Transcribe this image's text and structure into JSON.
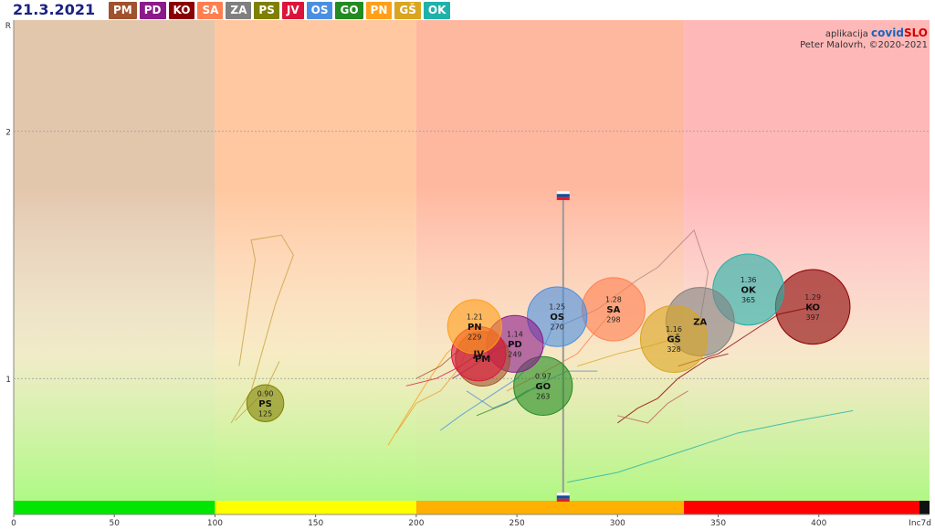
{
  "date": "21.3.2021",
  "regions": [
    {
      "code": "PM",
      "color": "#a0522d"
    },
    {
      "code": "PD",
      "color": "#8b1a8b"
    },
    {
      "code": "KO",
      "color": "#8b0000"
    },
    {
      "code": "SA",
      "color": "#ff7f50"
    },
    {
      "code": "ZA",
      "color": "#808080"
    },
    {
      "code": "PS",
      "color": "#808000"
    },
    {
      "code": "JV",
      "color": "#dc143c"
    },
    {
      "code": "OS",
      "color": "#4a90e2"
    },
    {
      "code": "GO",
      "color": "#228b22"
    },
    {
      "code": "PN",
      "color": "#ff9f1a"
    },
    {
      "code": "GŠ",
      "color": "#daa520"
    },
    {
      "code": "OK",
      "color": "#20b2aa"
    }
  ],
  "annotation": {
    "app_prefix": "aplikacija",
    "app_covid": "covid",
    "app_slo": "SLO",
    "author": "Peter Malovrh, ©2020-2021"
  },
  "chart_data": {
    "type": "scatter",
    "title": "",
    "xlabel": "Inc7d",
    "ylabel": "R",
    "xlim": [
      0,
      455
    ],
    "ylim": [
      0.45,
      2.45
    ],
    "xticks": [
      0,
      50,
      100,
      150,
      200,
      250,
      300,
      350,
      400
    ],
    "yticks": [
      1,
      2
    ],
    "bands": [
      {
        "from": 0,
        "to": 100,
        "color": "#e3c7ad",
        "bar": "#00e600"
      },
      {
        "from": 100,
        "to": 200,
        "color": "#ffc8a0",
        "bar": "#ffff00"
      },
      {
        "from": 200,
        "to": 333,
        "color": "#ffb8a0",
        "bar": "#ffb000"
      },
      {
        "from": 333,
        "to": 450,
        "color": "#ffb8b8",
        "bar": "#ff0000"
      },
      {
        "from": 450,
        "to": 455,
        "color": "#ffb8b8",
        "bar": "#111111"
      }
    ],
    "slovenia": {
      "x": 273,
      "r_high": 1.74,
      "r_low": 0.52
    },
    "points": [
      {
        "code": "PS",
        "x": 125,
        "r": 0.9,
        "size": 125,
        "color": "#808000",
        "labelR": "0.90"
      },
      {
        "code": "PN",
        "x": 229,
        "r": 1.21,
        "size": 229,
        "color": "#ff9f1a",
        "labelR": "1.21"
      },
      {
        "code": "JV",
        "x": 231,
        "r": 1.1,
        "size": 231,
        "color": "#dc143c",
        "labelR": ""
      },
      {
        "code": "PM",
        "x": 233,
        "r": 1.08,
        "size": 233,
        "color": "#a0522d",
        "labelR": ""
      },
      {
        "code": "PD",
        "x": 249,
        "r": 1.14,
        "size": 249,
        "color": "#8b1a8b",
        "labelR": "1.14"
      },
      {
        "code": "OS",
        "x": 270,
        "r": 1.25,
        "size": 270,
        "color": "#4a90e2",
        "labelR": "1.25"
      },
      {
        "code": "GO",
        "x": 263,
        "r": 0.97,
        "size": 263,
        "color": "#228b22",
        "labelR": "0.97"
      },
      {
        "code": "SA",
        "x": 298,
        "r": 1.28,
        "size": 298,
        "color": "#ff7f50",
        "labelR": "1.28"
      },
      {
        "code": "GŠ",
        "x": 328,
        "r": 1.16,
        "size": 328,
        "color": "#daa520",
        "labelR": "1.16"
      },
      {
        "code": "ZA",
        "x": 341,
        "r": 1.23,
        "size": 341,
        "color": "#808080",
        "labelR": ""
      },
      {
        "code": "OK",
        "x": 365,
        "r": 1.36,
        "size": 365,
        "color": "#20b2aa",
        "labelR": "1.36"
      },
      {
        "code": "KO",
        "x": 397,
        "r": 1.29,
        "size": 397,
        "color": "#8b0000",
        "labelR": "1.29"
      }
    ],
    "trails": [
      {
        "code": "PS",
        "color": "#c8a040",
        "pts": [
          [
            108,
            0.82
          ],
          [
            118,
            0.95
          ],
          [
            130,
            1.3
          ],
          [
            139,
            1.5
          ],
          [
            133,
            1.58
          ],
          [
            118,
            1.56
          ],
          [
            120,
            1.48
          ],
          [
            112,
            1.05
          ]
        ]
      },
      {
        "code": "PS2",
        "color": "#c8a040",
        "pts": [
          [
            110,
            0.83
          ],
          [
            125,
            0.95
          ],
          [
            132,
            1.07
          ]
        ]
      },
      {
        "code": "PN",
        "color": "#ff9f1a",
        "pts": [
          [
            186,
            0.73
          ],
          [
            195,
            0.85
          ],
          [
            205,
            0.98
          ],
          [
            215,
            1.1
          ],
          [
            229,
            1.21
          ]
        ]
      },
      {
        "code": "PN2",
        "color": "#e8a040",
        "pts": [
          [
            190,
            0.78
          ],
          [
            200,
            0.9
          ],
          [
            212,
            0.95
          ],
          [
            222,
            1.05
          ],
          [
            229,
            1.21
          ]
        ]
      },
      {
        "code": "JV",
        "color": "#dc143c",
        "pts": [
          [
            195,
            0.97
          ],
          [
            210,
            1.0
          ],
          [
            222,
            1.05
          ],
          [
            231,
            1.1
          ]
        ]
      },
      {
        "code": "PM",
        "color": "#a0522d",
        "pts": [
          [
            200,
            1.0
          ],
          [
            212,
            1.05
          ],
          [
            222,
            1.12
          ],
          [
            233,
            1.08
          ]
        ]
      },
      {
        "code": "PD",
        "color": "#8b1a8b",
        "pts": [
          [
            218,
            1.0
          ],
          [
            228,
            1.05
          ],
          [
            240,
            1.12
          ],
          [
            249,
            1.14
          ]
        ]
      },
      {
        "code": "OS",
        "color": "#4a90e2",
        "pts": [
          [
            212,
            0.79
          ],
          [
            222,
            0.85
          ],
          [
            235,
            0.92
          ],
          [
            250,
            1.0
          ],
          [
            262,
            1.1
          ],
          [
            270,
            1.25
          ]
        ]
      },
      {
        "code": "GO",
        "color": "#228b22",
        "pts": [
          [
            230,
            0.85
          ],
          [
            245,
            0.9
          ],
          [
            255,
            0.95
          ],
          [
            263,
            0.97
          ]
        ]
      },
      {
        "code": "SA",
        "color": "#ff7f50",
        "pts": [
          [
            245,
            0.95
          ],
          [
            262,
            1.02
          ],
          [
            280,
            1.1
          ],
          [
            298,
            1.28
          ]
        ]
      },
      {
        "code": "GŠ",
        "color": "#daa520",
        "pts": [
          [
            280,
            1.05
          ],
          [
            300,
            1.1
          ],
          [
            315,
            1.13
          ],
          [
            328,
            1.16
          ]
        ]
      },
      {
        "code": "ZA",
        "color": "#b08080",
        "pts": [
          [
            268,
            1.2
          ],
          [
            290,
            1.28
          ],
          [
            310,
            1.4
          ],
          [
            320,
            1.45
          ],
          [
            338,
            1.6
          ],
          [
            345,
            1.43
          ],
          [
            341,
            1.23
          ]
        ]
      },
      {
        "code": "OK",
        "color": "#20b2aa",
        "pts": [
          [
            275,
            0.58
          ],
          [
            300,
            0.62
          ],
          [
            330,
            0.7
          ],
          [
            360,
            0.78
          ],
          [
            390,
            0.83
          ],
          [
            417,
            0.87
          ]
        ]
      },
      {
        "code": "KO",
        "color": "#8b0000",
        "pts": [
          [
            330,
            1.05
          ],
          [
            350,
            1.1
          ],
          [
            365,
            1.18
          ],
          [
            380,
            1.26
          ],
          [
            397,
            1.29
          ]
        ]
      },
      {
        "code": "misc1",
        "color": "#8b0000",
        "pts": [
          [
            300,
            0.82
          ],
          [
            310,
            0.88
          ],
          [
            320,
            0.92
          ],
          [
            330,
            1.0
          ],
          [
            345,
            1.08
          ],
          [
            355,
            1.1
          ]
        ]
      },
      {
        "code": "misc2",
        "color": "#c06060",
        "pts": [
          [
            300,
            0.85
          ],
          [
            315,
            0.82
          ],
          [
            325,
            0.9
          ],
          [
            335,
            0.95
          ]
        ]
      },
      {
        "code": "misc3",
        "color": "#6090c0",
        "pts": [
          [
            225,
            0.95
          ],
          [
            238,
            0.88
          ],
          [
            250,
            0.92
          ],
          [
            262,
            0.98
          ],
          [
            275,
            1.03
          ],
          [
            290,
            1.03
          ]
        ]
      }
    ]
  }
}
